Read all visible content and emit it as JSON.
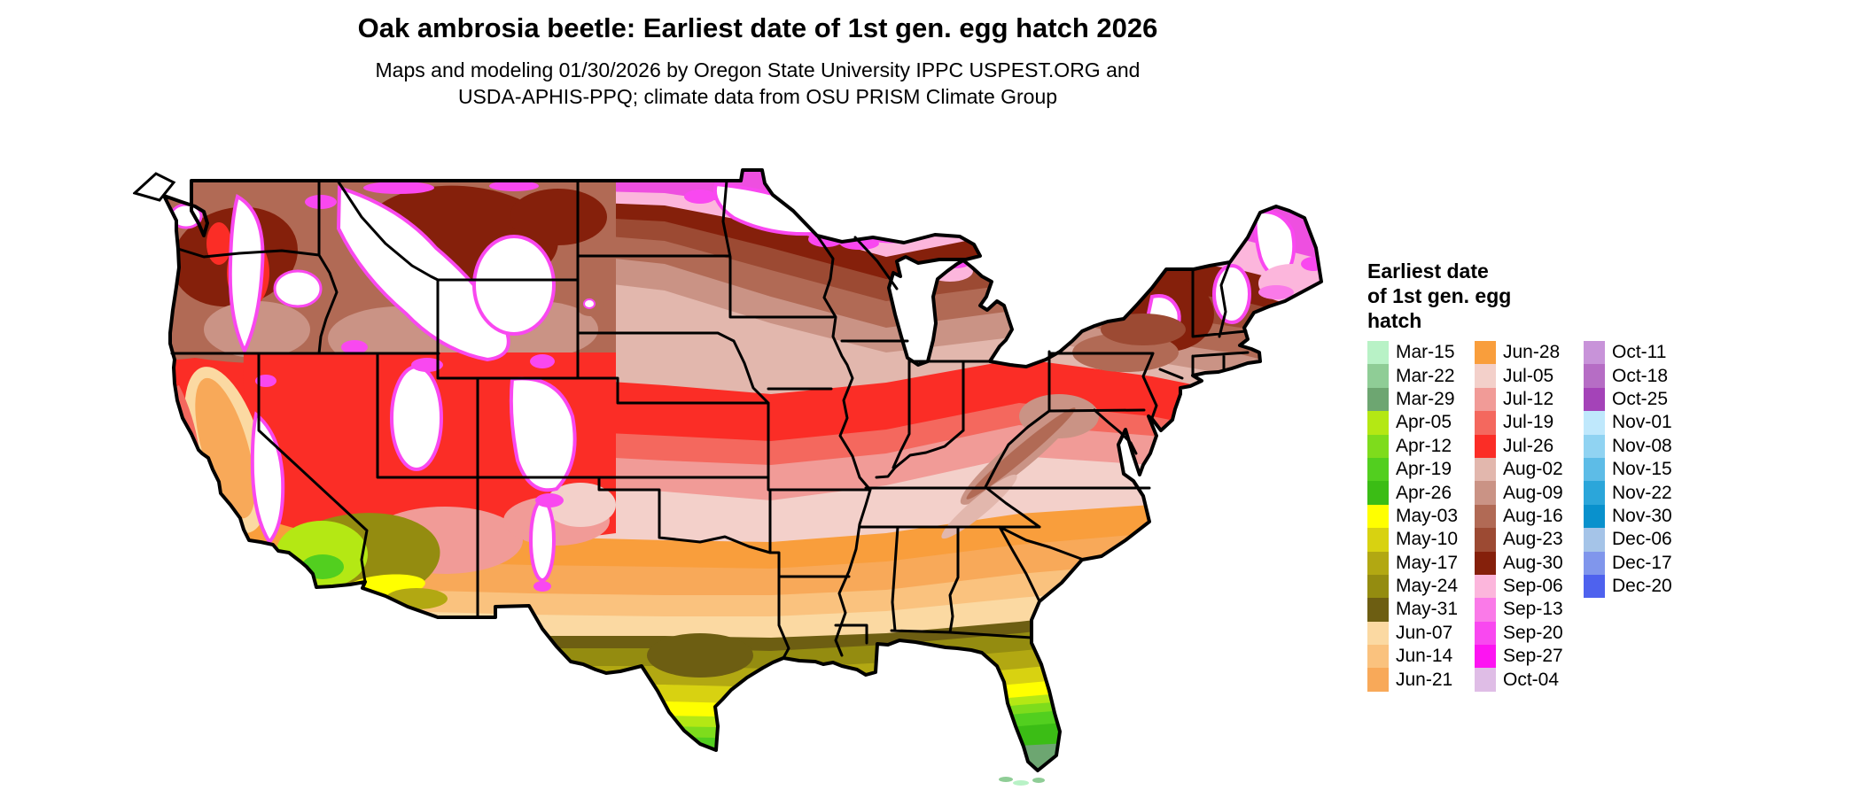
{
  "header": {
    "title": "Oak ambrosia beetle: Earliest date of 1st gen. egg hatch 2026",
    "subtitle_lines": [
      "Maps and modeling 01/30/2026 by Oregon State University IPPC USPEST.ORG and",
      "USDA-APHIS-PPQ; climate data from OSU PRISM Climate Group"
    ]
  },
  "legend": {
    "title_lines": [
      "Earliest date",
      "of 1st gen. egg",
      "hatch"
    ],
    "columns": [
      [
        {
          "label": "Mar-15",
          "color": "#b8f2c6"
        },
        {
          "label": "Mar-22",
          "color": "#8fcd96"
        },
        {
          "label": "Mar-29",
          "color": "#6da671"
        },
        {
          "label": "Apr-05",
          "color": "#b4e814"
        },
        {
          "label": "Apr-12",
          "color": "#7edc1c"
        },
        {
          "label": "Apr-19",
          "color": "#52cf1f"
        },
        {
          "label": "Apr-26",
          "color": "#3bbd15"
        },
        {
          "label": "May-03",
          "color": "#ffff00"
        },
        {
          "label": "May-10",
          "color": "#d8d211"
        },
        {
          "label": "May-17",
          "color": "#b2a812"
        },
        {
          "label": "May-24",
          "color": "#948c10"
        },
        {
          "label": "May-31",
          "color": "#6d5e12"
        },
        {
          "label": "Jun-07",
          "color": "#fbd9a2"
        },
        {
          "label": "Jun-14",
          "color": "#fac27e"
        },
        {
          "label": "Jun-21",
          "color": "#f8a959"
        }
      ],
      [
        {
          "label": "Jun-28",
          "color": "#f99e3c"
        },
        {
          "label": "Jul-05",
          "color": "#f3d0ca"
        },
        {
          "label": "Jul-12",
          "color": "#f19b97"
        },
        {
          "label": "Jul-19",
          "color": "#f4685e"
        },
        {
          "label": "Jul-26",
          "color": "#fb2d26"
        },
        {
          "label": "Aug-02",
          "color": "#e2b7ad"
        },
        {
          "label": "Aug-09",
          "color": "#ca9385"
        },
        {
          "label": "Aug-16",
          "color": "#b16a55"
        },
        {
          "label": "Aug-23",
          "color": "#9c4a33"
        },
        {
          "label": "Aug-30",
          "color": "#85200b"
        },
        {
          "label": "Sep-06",
          "color": "#fcb6dc"
        },
        {
          "label": "Sep-13",
          "color": "#fa7ae8"
        },
        {
          "label": "Sep-20",
          "color": "#f948f0"
        },
        {
          "label": "Sep-27",
          "color": "#fd14f2"
        },
        {
          "label": "Oct-04",
          "color": "#dfbde6"
        }
      ],
      [
        {
          "label": "Oct-11",
          "color": "#c893d9"
        },
        {
          "label": "Oct-18",
          "color": "#b66dc5"
        },
        {
          "label": "Oct-25",
          "color": "#a443b8"
        },
        {
          "label": "Nov-01",
          "color": "#bfe8fc"
        },
        {
          "label": "Nov-08",
          "color": "#90d3f2"
        },
        {
          "label": "Nov-15",
          "color": "#5dbce7"
        },
        {
          "label": "Nov-22",
          "color": "#2ba6da"
        },
        {
          "label": "Nov-30",
          "color": "#0991cd"
        },
        {
          "label": "Dec-06",
          "color": "#a5c4e8"
        },
        {
          "label": "Dec-17",
          "color": "#8096ec"
        },
        {
          "label": "Dec-20",
          "color": "#4e62ee"
        }
      ]
    ]
  }
}
